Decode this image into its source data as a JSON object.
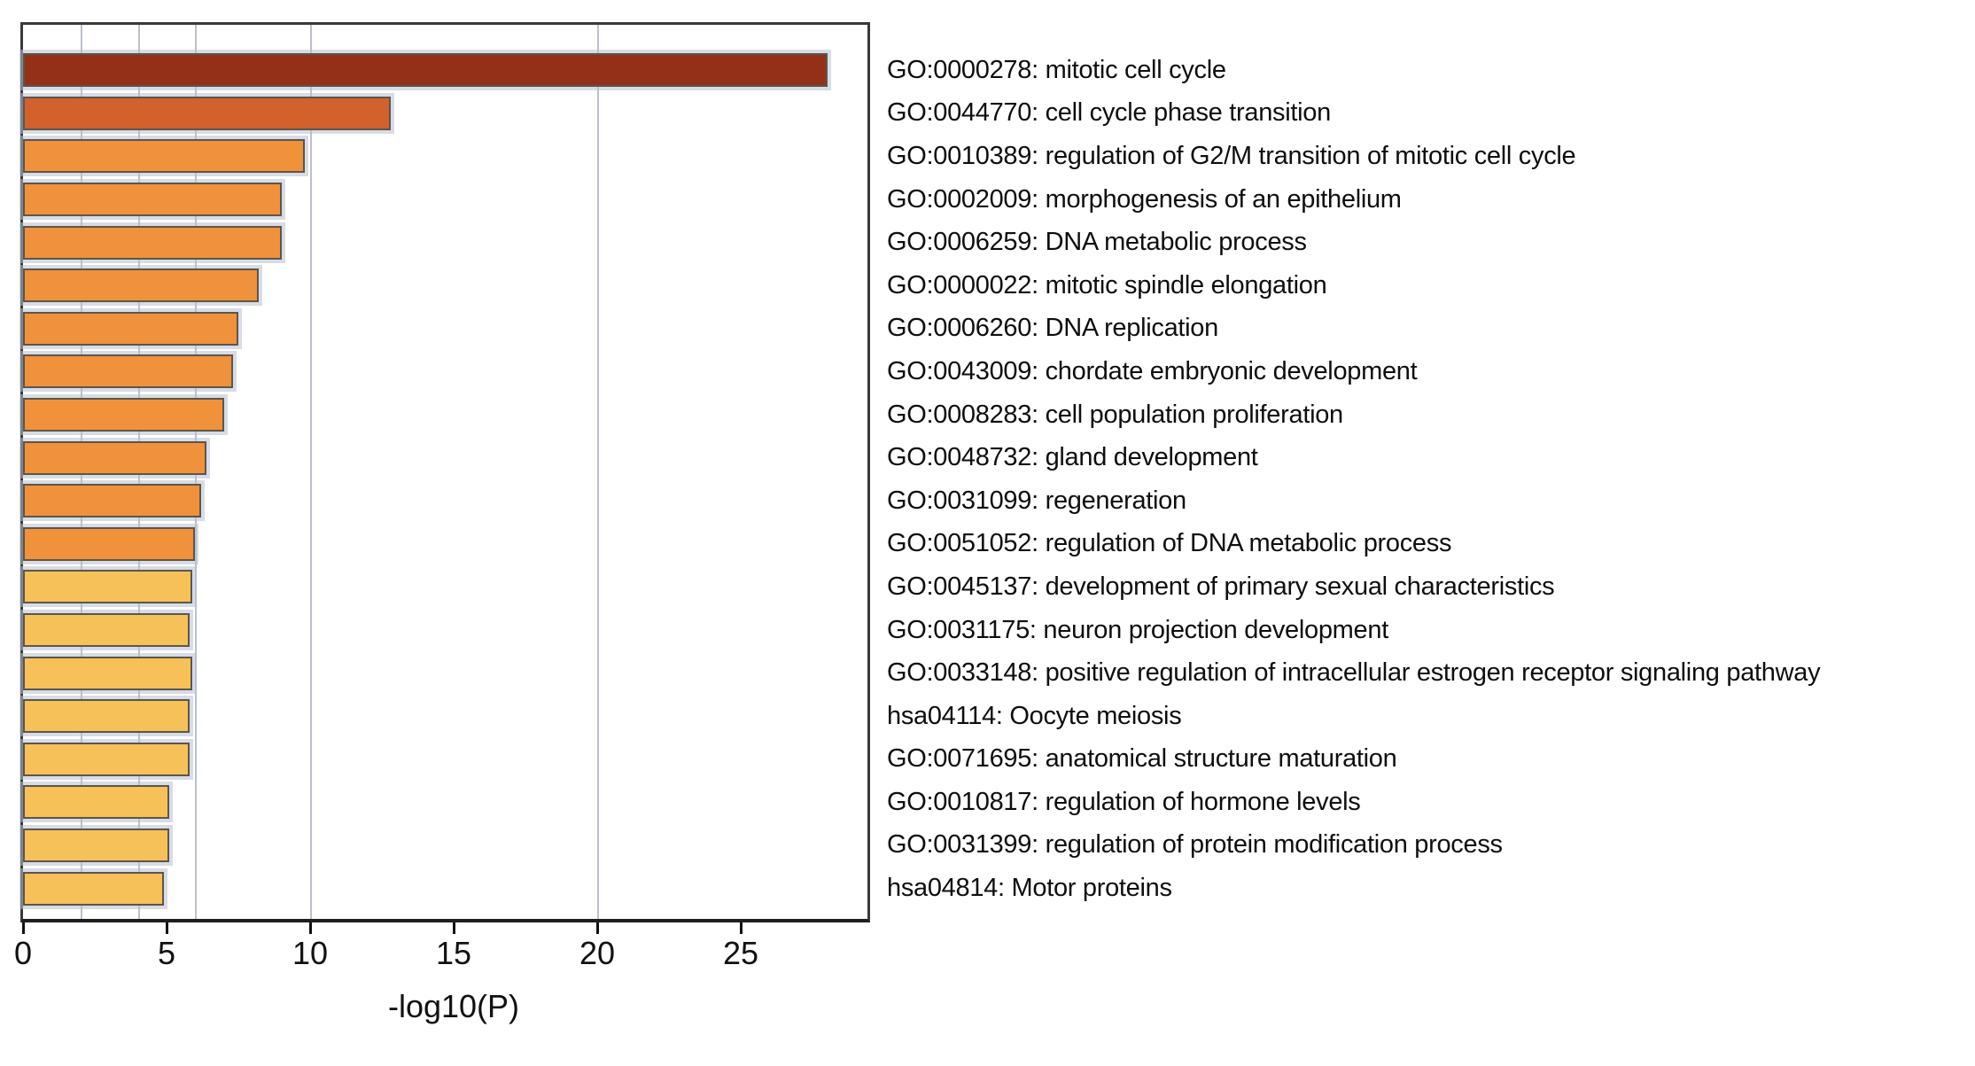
{
  "chart_data": {
    "type": "bar",
    "orientation": "horizontal",
    "title": "",
    "xlabel": "-log10(P)",
    "ylabel": "",
    "x_ticks": [
      0,
      5,
      10,
      15,
      20,
      25
    ],
    "xlim": [
      0,
      29.4
    ],
    "gridlines_x": [
      2,
      4,
      6,
      10,
      20
    ],
    "grid": "vertical lines at p-value bin thresholds, drawn behind bars",
    "legend_position": "none",
    "categories": [
      "GO:0000278: mitotic cell cycle",
      "GO:0044770: cell cycle phase transition",
      "GO:0010389: regulation of G2/M transition of mitotic cell cycle",
      "GO:0002009: morphogenesis of an epithelium",
      "GO:0006259: DNA metabolic process",
      "GO:0000022: mitotic spindle elongation",
      "GO:0006260: DNA replication",
      "GO:0043009: chordate embryonic development",
      "GO:0008283: cell population proliferation",
      "GO:0048732: gland development",
      "GO:0031099: regeneration",
      "GO:0051052: regulation of DNA metabolic process",
      "GO:0045137: development of primary sexual characteristics",
      "GO:0031175: neuron projection development",
      "GO:0033148: positive regulation of intracellular estrogen receptor signaling pathway",
      "hsa04114: Oocyte meiosis",
      "GO:0071695: anatomical structure maturation",
      "GO:0010817: regulation of hormone levels",
      "GO:0031399: regulation of protein modification process",
      "hsa04814: Motor proteins"
    ],
    "values": [
      28.0,
      12.8,
      9.8,
      9.0,
      9.0,
      8.2,
      7.5,
      7.3,
      7.0,
      6.4,
      6.2,
      6.0,
      5.9,
      5.8,
      5.9,
      5.8,
      5.8,
      5.1,
      5.1,
      4.9
    ],
    "bar_colors": [
      "#943018",
      "#D2612B",
      "#F0913B",
      "#F0913B",
      "#F0913B",
      "#F0913B",
      "#F0913B",
      "#F0913B",
      "#F0913B",
      "#F0913B",
      "#F0913B",
      "#F0913B",
      "#F6C159",
      "#F6C159",
      "#F6C159",
      "#F6C159",
      "#F6C159",
      "#F6C159",
      "#F6C159",
      "#F6C159"
    ],
    "color_bins": {
      "gt_20": "#943018",
      "10_to_20": "#D2612B",
      "6_to_10": "#F0913B",
      "4_to_6": "#F6C159"
    }
  },
  "colors": {
    "background": "#ffffff",
    "bar_edge": "#5b564c",
    "bar_halo": "#b7c0cf",
    "gridline": "#b9c0ce",
    "plot_border": "#3a3a3a",
    "axis_line": "#1e1e1e",
    "tick": "#111111",
    "text": "#0e0e0e"
  },
  "x_tick_labels": [
    "0",
    "5",
    "10",
    "15",
    "20",
    "25"
  ]
}
